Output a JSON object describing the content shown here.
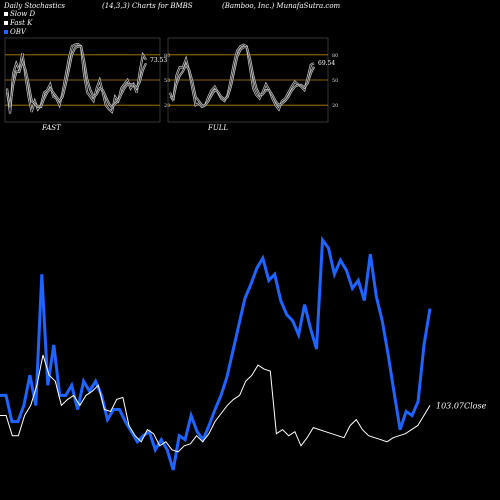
{
  "header": {
    "left": "Daily Stochastics",
    "center": "(14,3,3) Charts for BMBS",
    "right": "(Bamboo, Inc.) MunafaSutra.com"
  },
  "legend": [
    {
      "label": "Slow D",
      "color": "#ffffff"
    },
    {
      "label": "Fast K",
      "color": "#ffffff"
    },
    {
      "label": "OBV",
      "color": "#1e64ff"
    }
  ],
  "colors": {
    "background": "#000000",
    "band": "#b8860b",
    "stoch": "#ffffff",
    "obv": "#1e64ff",
    "close": "#ffffff"
  },
  "chart_data": [
    {
      "type": "line",
      "title": "FAST",
      "ylim": [
        0,
        100
      ],
      "y_ticks": [
        20,
        50,
        80
      ],
      "bands": [
        20,
        50,
        80
      ],
      "last_value": "73.53",
      "series": [
        {
          "name": "Fast K",
          "values": [
            40,
            10,
            58,
            70,
            62,
            82,
            55,
            30,
            12,
            25,
            15,
            20,
            35,
            38,
            45,
            30,
            28,
            20,
            35,
            55,
            75,
            90,
            92,
            93,
            90,
            55,
            35,
            30,
            25,
            40,
            50,
            35,
            20,
            15,
            12,
            30,
            25,
            40,
            45,
            50,
            40,
            45,
            35,
            60,
            80,
            74
          ]
        },
        {
          "name": "Slow D",
          "values": [
            35,
            18,
            45,
            60,
            60,
            72,
            62,
            45,
            25,
            22,
            18,
            18,
            28,
            35,
            40,
            35,
            30,
            25,
            30,
            45,
            62,
            80,
            88,
            90,
            90,
            72,
            50,
            38,
            30,
            33,
            40,
            38,
            30,
            22,
            17,
            22,
            25,
            33,
            40,
            45,
            45,
            45,
            40,
            48,
            62,
            70
          ]
        }
      ]
    },
    {
      "type": "line",
      "title": "FULL",
      "ylim": [
        0,
        100
      ],
      "y_ticks": [
        20,
        50,
        80
      ],
      "bands": [
        20,
        50,
        80
      ],
      "last_value": "69.54",
      "series": [
        {
          "name": "Full K",
          "values": [
            35,
            25,
            55,
            65,
            65,
            75,
            60,
            40,
            20,
            22,
            18,
            20,
            30,
            38,
            42,
            35,
            28,
            25,
            32,
            50,
            70,
            85,
            90,
            92,
            90,
            65,
            40,
            32,
            28,
            36,
            45,
            38,
            28,
            20,
            15,
            25,
            28,
            35,
            42,
            48,
            45,
            42,
            38,
            52,
            68,
            70
          ]
        },
        {
          "name": "Full D",
          "values": [
            30,
            28,
            45,
            55,
            60,
            68,
            62,
            48,
            30,
            25,
            20,
            20,
            25,
            32,
            38,
            36,
            30,
            27,
            30,
            42,
            60,
            78,
            86,
            89,
            89,
            75,
            55,
            40,
            32,
            33,
            38,
            38,
            32,
            25,
            20,
            22,
            25,
            30,
            37,
            42,
            44,
            44,
            41,
            46,
            58,
            66
          ]
        }
      ]
    },
    {
      "type": "line",
      "title": "",
      "last_value": "103.07",
      "last_label": "Close",
      "series": [
        {
          "name": "OBV",
          "values": [
            35,
            35,
            22,
            22,
            30,
            45,
            30,
            95,
            40,
            60,
            35,
            35,
            40,
            28,
            42,
            37,
            42,
            35,
            23,
            28,
            28,
            22,
            17,
            12,
            15,
            17,
            8,
            13,
            8,
            -2,
            15,
            13,
            25,
            17,
            13,
            20,
            28,
            35,
            44,
            57,
            70,
            83,
            90,
            98,
            103,
            92,
            95,
            82,
            75,
            72,
            65,
            80,
            68,
            58,
            112,
            108,
            95,
            102,
            97,
            88,
            92,
            82,
            105,
            84,
            72,
            55,
            36,
            18,
            27,
            25,
            32,
            60,
            78
          ]
        },
        {
          "name": "Close",
          "values": [
            25,
            25,
            15,
            15,
            25,
            30,
            40,
            55,
            45,
            42,
            30,
            33,
            35,
            30,
            35,
            37,
            40,
            28,
            27,
            33,
            34,
            20,
            15,
            12,
            18,
            16,
            10,
            12,
            8,
            7,
            10,
            11,
            15,
            12,
            16,
            22,
            26,
            30,
            33,
            35,
            42,
            45,
            50,
            48,
            47,
            16,
            18,
            15,
            17,
            10,
            14,
            19,
            18,
            17,
            16,
            15,
            14,
            20,
            23,
            18,
            15,
            14,
            13,
            12,
            14,
            15,
            16,
            18,
            20,
            25,
            30
          ]
        }
      ]
    }
  ]
}
